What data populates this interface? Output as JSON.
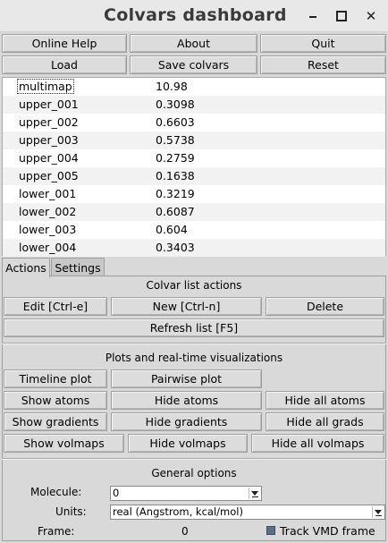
{
  "window": {
    "title": "Colvars dashboard"
  },
  "toolbar": {
    "online_help": "Online Help",
    "about": "About",
    "quit": "Quit",
    "load": "Load",
    "save_colvars": "Save colvars",
    "reset": "Reset"
  },
  "colvars": [
    {
      "name": "multimap",
      "value": "10.98"
    },
    {
      "name": "upper_001",
      "value": "0.3098"
    },
    {
      "name": "upper_002",
      "value": "0.6603"
    },
    {
      "name": "upper_003",
      "value": "0.5738"
    },
    {
      "name": "upper_004",
      "value": "0.2759"
    },
    {
      "name": "upper_005",
      "value": "0.1638"
    },
    {
      "name": "lower_001",
      "value": "0.3219"
    },
    {
      "name": "lower_002",
      "value": "0.6087"
    },
    {
      "name": "lower_003",
      "value": "0.604"
    },
    {
      "name": "lower_004",
      "value": "0.3403"
    }
  ],
  "tabs": {
    "actions": "Actions",
    "settings": "Settings"
  },
  "list_actions": {
    "title": "Colvar list actions",
    "edit": "Edit [Ctrl-e]",
    "new": "New [Ctrl-n]",
    "delete": "Delete",
    "refresh": "Refresh list [F5]"
  },
  "plots": {
    "title": "Plots and real-time visualizations",
    "timeline": "Timeline plot",
    "pairwise": "Pairwise plot",
    "show_atoms": "Show atoms",
    "hide_atoms": "Hide atoms",
    "hide_all_atoms": "Hide all atoms",
    "show_gradients": "Show gradients",
    "hide_gradients": "Hide gradients",
    "hide_all_grads": "Hide all grads",
    "show_volmaps": "Show volmaps",
    "hide_volmaps": "Hide volmaps",
    "hide_all_volmaps": "Hide all volmaps"
  },
  "general": {
    "title": "General options",
    "molecule_label": "Molecule:",
    "molecule_value": "0",
    "units_label": "Units:",
    "units_value": "real (Angstrom, kcal/mol)",
    "frame_label": "Frame:",
    "frame_value": "0",
    "track_label": "Track VMD frame"
  }
}
